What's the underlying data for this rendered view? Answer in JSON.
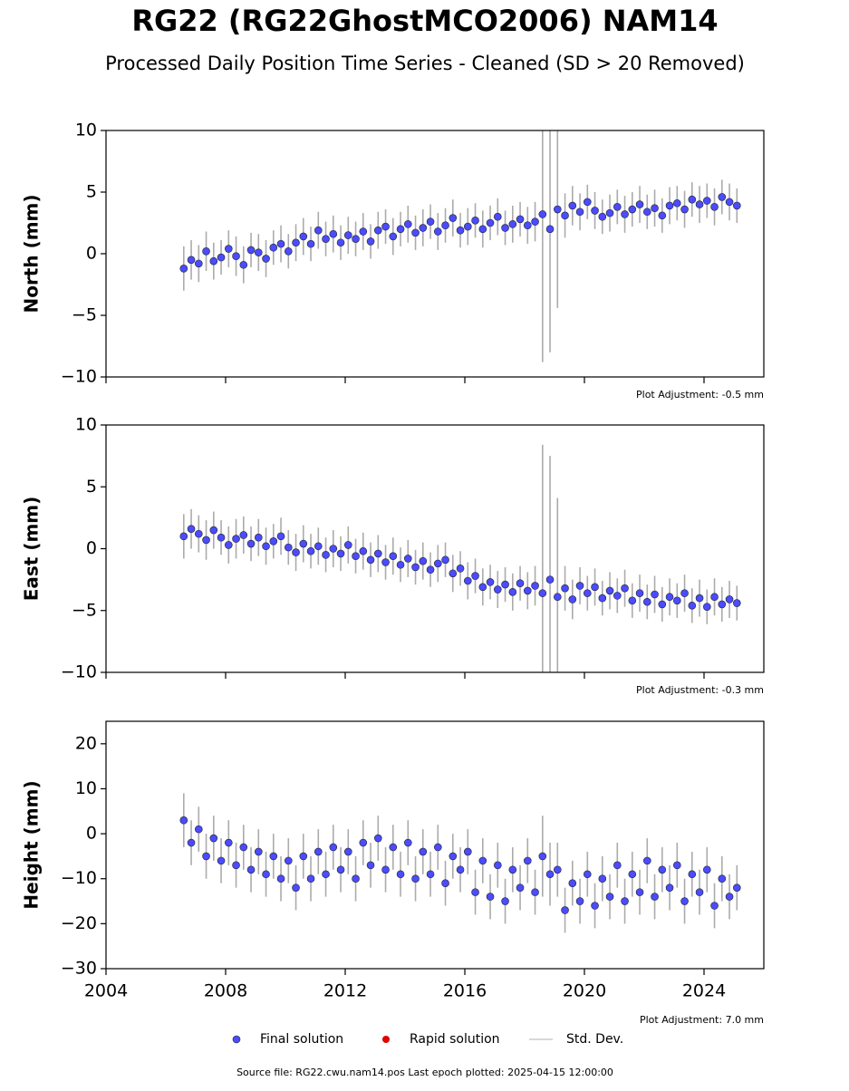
{
  "title": "RG22 (RG22GhostMCO2006) NAM14",
  "subtitle": "Processed Daily Position Time Series - Cleaned (SD > 20 Removed)",
  "legend": [
    {
      "name": "Final solution",
      "color": "#4b4bff",
      "kind": "dot"
    },
    {
      "name": "Rapid solution",
      "color": "#e00000",
      "kind": "dot"
    },
    {
      "name": "Std. Dev.",
      "color": "#cccccc",
      "kind": "line"
    }
  ],
  "source": "Source file: RG22.cwu.nam14.pos  Last epoch plotted: 2025-04-15 12:00:00",
  "chart_data": [
    {
      "type": "scatter",
      "ylabel": "North (mm)",
      "annotation": "Plot Adjustment: -0.5 mm",
      "xlim": [
        2004,
        2026
      ],
      "xticks": [
        2004,
        2008,
        2012,
        2016,
        2020,
        2024
      ],
      "show_xtick_labels": false,
      "ylim": [
        -10,
        10
      ],
      "yticks": [
        {
          "value": -10,
          "label": "−10"
        },
        {
          "value": -5,
          "label": "−5"
        },
        0,
        5,
        10
      ],
      "x": [
        2006.6,
        2006.85,
        2007.1,
        2007.35,
        2007.6,
        2007.85,
        2008.1,
        2008.35,
        2008.6,
        2008.85,
        2009.1,
        2009.35,
        2009.6,
        2009.85,
        2010.1,
        2010.35,
        2010.6,
        2010.85,
        2011.1,
        2011.35,
        2011.6,
        2011.85,
        2012.1,
        2012.35,
        2012.6,
        2012.85,
        2013.1,
        2013.35,
        2013.6,
        2013.85,
        2014.1,
        2014.35,
        2014.6,
        2014.85,
        2015.1,
        2015.35,
        2015.6,
        2015.85,
        2016.1,
        2016.35,
        2016.6,
        2016.85,
        2017.1,
        2017.35,
        2017.6,
        2017.85,
        2018.1,
        2018.35,
        2018.6,
        2018.85,
        2019.1,
        2019.35,
        2019.6,
        2019.85,
        2020.1,
        2020.35,
        2020.6,
        2020.85,
        2021.1,
        2021.35,
        2021.6,
        2021.85,
        2022.1,
        2022.35,
        2022.6,
        2022.85,
        2023.1,
        2023.35,
        2023.6,
        2023.85,
        2024.1,
        2024.35,
        2024.6,
        2024.85,
        2025.1
      ],
      "series": [
        {
          "name": "Final solution",
          "color": "#4b4bff",
          "values": [
            -1.2,
            -0.5,
            -0.8,
            0.2,
            -0.6,
            -0.3,
            0.4,
            -0.2,
            -0.9,
            0.3,
            0.1,
            -0.4,
            0.5,
            0.8,
            0.2,
            0.9,
            1.4,
            0.8,
            1.9,
            1.2,
            1.6,
            0.9,
            1.5,
            1.2,
            1.8,
            1.0,
            1.9,
            2.2,
            1.4,
            2.0,
            2.4,
            1.7,
            2.1,
            2.6,
            1.8,
            2.3,
            2.9,
            1.9,
            2.2,
            2.7,
            2.0,
            2.5,
            3.0,
            2.1,
            2.4,
            2.8,
            2.3,
            2.6,
            3.2,
            2.0,
            3.6,
            3.1,
            3.9,
            3.4,
            4.2,
            3.5,
            3.0,
            3.3,
            3.8,
            3.2,
            3.6,
            4.0,
            3.4,
            3.7,
            3.1,
            3.9,
            4.1,
            3.6,
            4.4,
            4.0,
            4.3,
            3.8,
            4.6,
            4.2,
            3.9
          ],
          "errors": [
            1.8,
            1.6,
            1.5,
            1.6,
            1.5,
            1.4,
            1.5,
            1.6,
            1.5,
            1.4,
            1.5,
            1.5,
            1.4,
            1.5,
            1.4,
            1.5,
            1.5,
            1.4,
            1.5,
            1.4,
            1.5,
            1.4,
            1.5,
            1.4,
            1.5,
            1.4,
            1.5,
            1.4,
            1.5,
            1.4,
            1.5,
            1.4,
            1.5,
            1.4,
            1.5,
            1.4,
            1.5,
            1.4,
            1.5,
            1.4,
            1.5,
            1.4,
            1.5,
            1.4,
            1.5,
            1.4,
            1.5,
            1.6,
            12,
            10,
            8,
            1.8,
            1.6,
            1.5,
            1.4,
            1.5,
            1.4,
            1.5,
            1.4,
            1.5,
            1.4,
            1.5,
            1.4,
            1.5,
            1.4,
            1.5,
            1.4,
            1.5,
            1.4,
            1.5,
            1.4,
            1.5,
            1.4,
            1.5,
            1.4
          ]
        }
      ]
    },
    {
      "type": "scatter",
      "ylabel": "East (mm)",
      "annotation": "Plot Adjustment: -0.3 mm",
      "xlim": [
        2004,
        2026
      ],
      "xticks": [
        2004,
        2008,
        2012,
        2016,
        2020,
        2024
      ],
      "show_xtick_labels": false,
      "ylim": [
        -10,
        10
      ],
      "yticks": [
        {
          "value": -10,
          "label": "−10"
        },
        {
          "value": -5,
          "label": "−5"
        },
        0,
        5,
        10
      ],
      "x": [
        2006.6,
        2006.85,
        2007.1,
        2007.35,
        2007.6,
        2007.85,
        2008.1,
        2008.35,
        2008.6,
        2008.85,
        2009.1,
        2009.35,
        2009.6,
        2009.85,
        2010.1,
        2010.35,
        2010.6,
        2010.85,
        2011.1,
        2011.35,
        2011.6,
        2011.85,
        2012.1,
        2012.35,
        2012.6,
        2012.85,
        2013.1,
        2013.35,
        2013.6,
        2013.85,
        2014.1,
        2014.35,
        2014.6,
        2014.85,
        2015.1,
        2015.35,
        2015.6,
        2015.85,
        2016.1,
        2016.35,
        2016.6,
        2016.85,
        2017.1,
        2017.35,
        2017.6,
        2017.85,
        2018.1,
        2018.35,
        2018.6,
        2018.85,
        2019.1,
        2019.35,
        2019.6,
        2019.85,
        2020.1,
        2020.35,
        2020.6,
        2020.85,
        2021.1,
        2021.35,
        2021.6,
        2021.85,
        2022.1,
        2022.35,
        2022.6,
        2022.85,
        2023.1,
        2023.35,
        2023.6,
        2023.85,
        2024.1,
        2024.35,
        2024.6,
        2024.85,
        2025.1
      ],
      "series": [
        {
          "name": "Final solution",
          "color": "#4b4bff",
          "values": [
            1.0,
            1.6,
            1.2,
            0.7,
            1.5,
            0.9,
            0.3,
            0.8,
            1.1,
            0.4,
            0.9,
            0.2,
            0.6,
            1.0,
            0.1,
            -0.3,
            0.4,
            -0.2,
            0.2,
            -0.5,
            0.0,
            -0.4,
            0.3,
            -0.6,
            -0.2,
            -0.9,
            -0.4,
            -1.1,
            -0.6,
            -1.3,
            -0.8,
            -1.5,
            -1.0,
            -1.7,
            -1.2,
            -0.9,
            -2.0,
            -1.6,
            -2.6,
            -2.2,
            -3.1,
            -2.7,
            -3.3,
            -2.9,
            -3.5,
            -2.8,
            -3.4,
            -3.0,
            -3.6,
            -2.5,
            -3.9,
            -3.2,
            -4.1,
            -3.0,
            -3.6,
            -3.1,
            -4.0,
            -3.4,
            -3.8,
            -3.2,
            -4.2,
            -3.6,
            -4.3,
            -3.7,
            -4.5,
            -3.9,
            -4.2,
            -3.6,
            -4.6,
            -4.0,
            -4.7,
            -3.9,
            -4.5,
            -4.1,
            -4.4
          ],
          "errors": [
            1.8,
            1.6,
            1.5,
            1.6,
            1.5,
            1.4,
            1.5,
            1.6,
            1.5,
            1.4,
            1.5,
            1.5,
            1.4,
            1.5,
            1.4,
            1.5,
            1.5,
            1.4,
            1.5,
            1.4,
            1.5,
            1.4,
            1.5,
            1.4,
            1.5,
            1.4,
            1.5,
            1.4,
            1.5,
            1.4,
            1.5,
            1.4,
            1.5,
            1.4,
            1.5,
            1.4,
            1.5,
            1.4,
            1.5,
            1.4,
            1.5,
            1.4,
            1.5,
            1.4,
            1.5,
            1.4,
            1.5,
            1.6,
            12,
            10,
            8,
            1.8,
            1.6,
            1.5,
            1.4,
            1.5,
            1.4,
            1.5,
            1.4,
            1.5,
            1.4,
            1.5,
            1.4,
            1.5,
            1.4,
            1.5,
            1.4,
            1.5,
            1.4,
            1.5,
            1.4,
            1.5,
            1.4,
            1.5,
            1.4
          ]
        }
      ]
    },
    {
      "type": "scatter",
      "ylabel": "Height (mm)",
      "annotation": "Plot Adjustment: 7.0 mm",
      "xlim": [
        2004,
        2026
      ],
      "xticks": [
        2004,
        2008,
        2012,
        2016,
        2020,
        2024
      ],
      "show_xtick_labels": true,
      "ylim": [
        -30,
        25
      ],
      "yticks": [
        {
          "value": -30,
          "label": "−30"
        },
        {
          "value": -20,
          "label": "−20"
        },
        {
          "value": -10,
          "label": "−10"
        },
        0,
        10,
        20
      ],
      "x": [
        2006.6,
        2006.85,
        2007.1,
        2007.35,
        2007.6,
        2007.85,
        2008.1,
        2008.35,
        2008.6,
        2008.85,
        2009.1,
        2009.35,
        2009.6,
        2009.85,
        2010.1,
        2010.35,
        2010.6,
        2010.85,
        2011.1,
        2011.35,
        2011.6,
        2011.85,
        2012.1,
        2012.35,
        2012.6,
        2012.85,
        2013.1,
        2013.35,
        2013.6,
        2013.85,
        2014.1,
        2014.35,
        2014.6,
        2014.85,
        2015.1,
        2015.35,
        2015.6,
        2015.85,
        2016.1,
        2016.35,
        2016.6,
        2016.85,
        2017.1,
        2017.35,
        2017.6,
        2017.85,
        2018.1,
        2018.35,
        2018.6,
        2018.85,
        2019.1,
        2019.35,
        2019.6,
        2019.85,
        2020.1,
        2020.35,
        2020.6,
        2020.85,
        2021.1,
        2021.35,
        2021.6,
        2021.85,
        2022.1,
        2022.35,
        2022.6,
        2022.85,
        2023.1,
        2023.35,
        2023.6,
        2023.85,
        2024.1,
        2024.35,
        2024.6,
        2024.85,
        2025.1
      ],
      "series": [
        {
          "name": "Final solution",
          "color": "#4b4bff",
          "values": [
            3,
            -2,
            1,
            -5,
            -1,
            -6,
            -2,
            -7,
            -3,
            -8,
            -4,
            -9,
            -5,
            -10,
            -6,
            -12,
            -5,
            -10,
            -4,
            -9,
            -3,
            -8,
            -4,
            -10,
            -2,
            -7,
            -1,
            -8,
            -3,
            -9,
            -2,
            -10,
            -4,
            -9,
            -3,
            -11,
            -5,
            -8,
            -4,
            -13,
            -6,
            -14,
            -7,
            -15,
            -8,
            -12,
            -6,
            -13,
            -5,
            -9,
            -8,
            -17,
            -11,
            -15,
            -9,
            -16,
            -10,
            -14,
            -7,
            -15,
            -9,
            -13,
            -6,
            -14,
            -8,
            -12,
            -7,
            -15,
            -9,
            -13,
            -8,
            -16,
            -10,
            -14,
            -12
          ],
          "errors": [
            6,
            5,
            5,
            5,
            5,
            5,
            5,
            5,
            5,
            5,
            5,
            5,
            5,
            5,
            5,
            5,
            5,
            5,
            5,
            5,
            5,
            5,
            5,
            5,
            5,
            5,
            5,
            5,
            5,
            5,
            5,
            5,
            5,
            5,
            5,
            5,
            5,
            5,
            5,
            5,
            5,
            5,
            5,
            5,
            5,
            5,
            5,
            5,
            9,
            7,
            6,
            5,
            5,
            5,
            5,
            5,
            5,
            5,
            5,
            5,
            5,
            5,
            5,
            5,
            5,
            5,
            5,
            5,
            5,
            5,
            5,
            5,
            5,
            5,
            5
          ]
        }
      ]
    }
  ]
}
